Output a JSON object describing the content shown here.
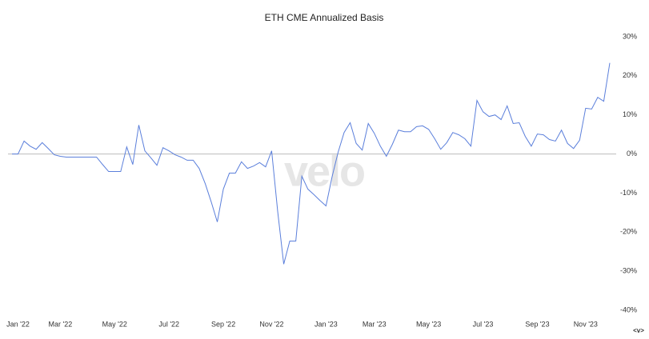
{
  "chart_data": {
    "type": "line",
    "title": "ETH CME Annualized Basis",
    "watermark": "velo",
    "corner_icon": "<v>",
    "categories": [
      null,
      "Jan '22",
      null,
      null,
      null,
      null,
      null,
      null,
      "Mar '22",
      null,
      null,
      null,
      null,
      null,
      null,
      null,
      null,
      "May '22",
      null,
      null,
      null,
      null,
      null,
      null,
      null,
      null,
      "Jul '22",
      null,
      null,
      null,
      null,
      null,
      null,
      null,
      null,
      "Sep '22",
      null,
      null,
      null,
      null,
      null,
      null,
      null,
      "Nov '22",
      null,
      null,
      null,
      null,
      null,
      null,
      null,
      null,
      "Jan '23",
      null,
      null,
      null,
      null,
      null,
      null,
      null,
      "Mar '23",
      null,
      null,
      null,
      null,
      null,
      null,
      null,
      null,
      "May '23",
      null,
      null,
      null,
      null,
      null,
      null,
      null,
      null,
      "Jul '23",
      null,
      null,
      null,
      null,
      null,
      null,
      null,
      null,
      "Sep '23",
      null,
      null,
      null,
      null,
      null,
      null,
      null,
      "Nov '23",
      null,
      null,
      null,
      null
    ],
    "series": [
      {
        "name": "ETH CME Annualized Basis",
        "color": "#5b7fdb",
        "values": [
          0,
          0,
          3.3,
          2.0,
          1.2,
          2.9,
          1.4,
          -0.2,
          -0.6,
          -0.8,
          -0.8,
          -0.8,
          -0.8,
          -0.8,
          -0.8,
          -2.7,
          -4.5,
          -4.5,
          -4.5,
          1.8,
          -2.7,
          7.4,
          0.8,
          -1.0,
          -2.9,
          1.6,
          0.8,
          -0.2,
          -0.8,
          -1.6,
          -1.6,
          -3.7,
          -7.6,
          -12.3,
          -17.4,
          -9.0,
          -4.9,
          -4.9,
          -2.0,
          -3.7,
          -3.1,
          -2.2,
          -3.3,
          0.8,
          -14.7,
          -28.2,
          -22.3,
          -22.3,
          -5.7,
          -9.0,
          -10.4,
          -11.9,
          -13.3,
          -5.9,
          0.4,
          5.5,
          8.0,
          2.7,
          1.0,
          7.8,
          5.3,
          2.0,
          -0.6,
          2.5,
          6.1,
          5.7,
          5.7,
          7.0,
          7.2,
          6.3,
          3.9,
          1.2,
          2.9,
          5.5,
          4.9,
          3.9,
          2.0,
          13.7,
          10.8,
          9.6,
          10.0,
          8.8,
          12.3,
          7.8,
          8.0,
          4.5,
          2.0,
          5.1,
          4.9,
          3.7,
          3.3,
          6.1,
          2.7,
          1.4,
          3.5,
          11.7,
          11.5,
          14.5,
          13.5,
          23.3
        ]
      }
    ],
    "ylim": [
      -40,
      30
    ],
    "yticks": [
      {
        "value": 30,
        "label": "30%"
      },
      {
        "value": 20,
        "label": "20%"
      },
      {
        "value": 10,
        "label": "10%"
      },
      {
        "value": 0,
        "label": "0%"
      },
      {
        "value": -10,
        "label": "-10%"
      },
      {
        "value": -20,
        "label": "-20%"
      },
      {
        "value": -30,
        "label": "-30%"
      },
      {
        "value": -40,
        "label": "-40%"
      }
    ],
    "zero_line": true
  }
}
